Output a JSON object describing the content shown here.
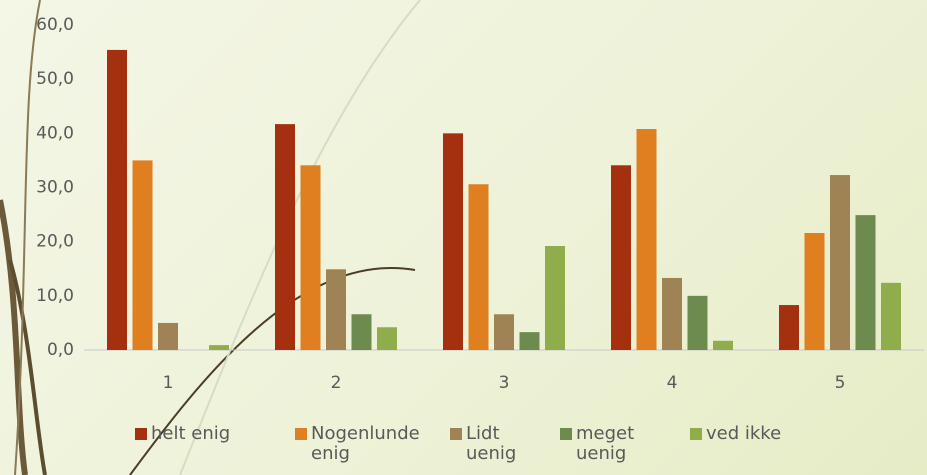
{
  "chart_data": {
    "type": "bar",
    "categories": [
      "1",
      "2",
      "3",
      "4",
      "5"
    ],
    "series": [
      {
        "name": "helt enig",
        "color": "#a5300f",
        "values": [
          55.4,
          41.7,
          40.0,
          34.1,
          8.3
        ]
      },
      {
        "name": "Nogenlunde enig",
        "color": "#e07f1f",
        "values": [
          35.0,
          34.1,
          30.6,
          40.8,
          21.6
        ]
      },
      {
        "name": "Lidt uenig",
        "color": "#a08354",
        "values": [
          5.0,
          14.9,
          6.6,
          13.3,
          32.3
        ]
      },
      {
        "name": "meget uenig",
        "color": "#6d8a4f",
        "values": [
          0.0,
          6.6,
          3.3,
          10.0,
          24.9
        ]
      },
      {
        "name": "ved ikke",
        "color": "#8fad4a",
        "values": [
          0.9,
          4.2,
          19.2,
          1.7,
          12.4
        ]
      }
    ],
    "ylim": [
      0,
      60
    ],
    "yticks": [
      {
        "value": 0,
        "label": "0,0"
      },
      {
        "value": 10,
        "label": "10,0"
      },
      {
        "value": 20,
        "label": "20,0"
      },
      {
        "value": 30,
        "label": "30,0"
      },
      {
        "value": 40,
        "label": "40,0"
      },
      {
        "value": 50,
        "label": "50,0"
      },
      {
        "value": 60,
        "label": "60,0"
      }
    ],
    "legend": "bottom"
  }
}
